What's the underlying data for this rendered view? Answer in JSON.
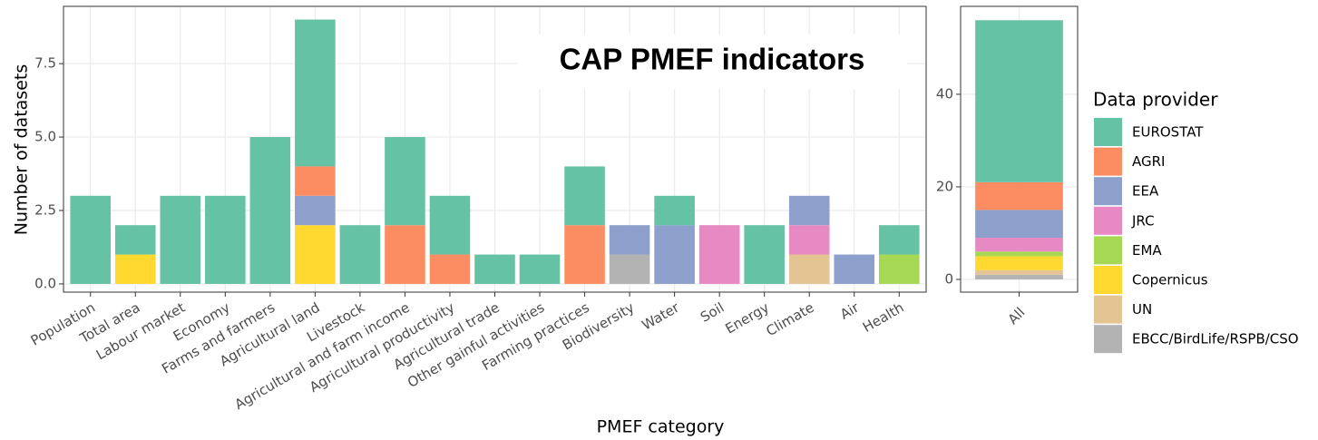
{
  "chart_data": [
    {
      "type": "bar",
      "stacked": true,
      "title": "CAP PMEF indicators",
      "x_label": "PMEF category",
      "y_label": "Number of datasets",
      "categories": [
        "Population",
        "Total area",
        "Labour market",
        "Economy",
        "Farms and farmers",
        "Agricultural land",
        "Livestock",
        "Agricultural and farm income",
        "Agricultural productivity",
        "Agricultural trade",
        "Other gainful activities",
        "Farming practices",
        "Biodiversity",
        "Water",
        "Soil",
        "Energy",
        "Climate",
        "Air",
        "Health"
      ],
      "series": [
        {
          "name": "EUROSTAT",
          "color": "#66c2a5",
          "values": [
            3,
            1,
            3,
            3,
            5,
            5,
            2,
            3,
            2,
            1,
            1,
            2,
            0,
            1,
            0,
            2,
            0,
            0,
            1
          ]
        },
        {
          "name": "AGRI",
          "color": "#fc8d62",
          "values": [
            0,
            0,
            0,
            0,
            0,
            1,
            0,
            2,
            1,
            0,
            0,
            2,
            0,
            0,
            0,
            0,
            0,
            0,
            0
          ]
        },
        {
          "name": "EEA",
          "color": "#8da0cb",
          "values": [
            0,
            0,
            0,
            0,
            0,
            1,
            0,
            0,
            0,
            0,
            0,
            0,
            1,
            2,
            0,
            0,
            1,
            1,
            0
          ]
        },
        {
          "name": "JRC",
          "color": "#e78ac3",
          "values": [
            0,
            0,
            0,
            0,
            0,
            0,
            0,
            0,
            0,
            0,
            0,
            0,
            0,
            0,
            2,
            0,
            1,
            0,
            0
          ]
        },
        {
          "name": "EMA",
          "color": "#a6d854",
          "values": [
            0,
            0,
            0,
            0,
            0,
            0,
            0,
            0,
            0,
            0,
            0,
            0,
            0,
            0,
            0,
            0,
            0,
            0,
            1
          ]
        },
        {
          "name": "Copernicus",
          "color": "#ffd92f",
          "values": [
            0,
            1,
            0,
            0,
            0,
            2,
            0,
            0,
            0,
            0,
            0,
            0,
            0,
            0,
            0,
            0,
            0,
            0,
            0
          ]
        },
        {
          "name": "UN",
          "color": "#e5c494",
          "values": [
            0,
            0,
            0,
            0,
            0,
            0,
            0,
            0,
            0,
            0,
            0,
            0,
            0,
            0,
            0,
            0,
            1,
            0,
            0
          ]
        },
        {
          "name": "EBCC/BirdLife/RSPB/CSO",
          "color": "#b3b3b3",
          "values": [
            0,
            0,
            0,
            0,
            0,
            0,
            0,
            0,
            0,
            0,
            0,
            0,
            1,
            0,
            0,
            0,
            0,
            0,
            0
          ]
        }
      ],
      "ylim": [
        -0.28,
        9.45
      ],
      "yticks": [
        {
          "value": 0,
          "label": "0.0"
        },
        2.5,
        {
          "value": 5,
          "label": "5.0"
        },
        7.5
      ],
      "grid": true
    },
    {
      "type": "bar",
      "stacked": true,
      "legend_title": "Data provider",
      "legend": "right",
      "categories": [
        "All"
      ],
      "series": [
        {
          "name": "EUROSTAT",
          "color": "#66c2a5",
          "values": [
            35
          ]
        },
        {
          "name": "AGRI",
          "color": "#fc8d62",
          "values": [
            6
          ]
        },
        {
          "name": "EEA",
          "color": "#8da0cb",
          "values": [
            6
          ]
        },
        {
          "name": "JRC",
          "color": "#e78ac3",
          "values": [
            3
          ]
        },
        {
          "name": "EMA",
          "color": "#a6d854",
          "values": [
            1
          ]
        },
        {
          "name": "Copernicus",
          "color": "#ffd92f",
          "values": [
            3
          ]
        },
        {
          "name": "UN",
          "color": "#e5c494",
          "values": [
            1
          ]
        },
        {
          "name": "EBCC/BirdLife/RSPB/CSO",
          "color": "#b3b3b3",
          "values": [
            1
          ]
        }
      ],
      "ylim": [
        -2.75,
        59
      ],
      "yticks": [
        0,
        20,
        40
      ],
      "grid": true
    }
  ]
}
